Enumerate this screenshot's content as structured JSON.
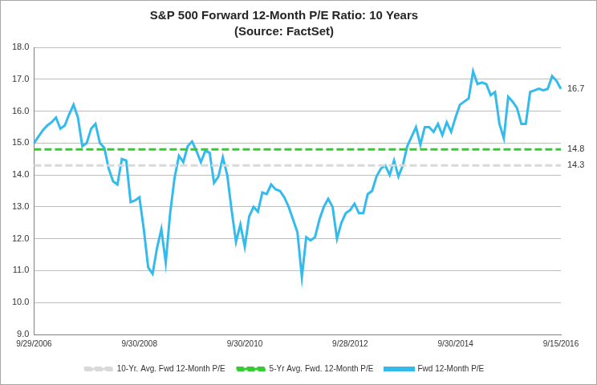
{
  "chart_data": {
    "type": "line",
    "title": "S&P 500 Forward 12-Month P/E Ratio: 10 Years",
    "subtitle": "(Source: FactSet)",
    "categories": [
      "9/29/2006",
      null,
      null,
      null,
      null,
      null,
      null,
      null,
      null,
      null,
      null,
      null,
      null,
      null,
      null,
      null,
      null,
      null,
      null,
      null,
      null,
      null,
      null,
      null,
      "9/30/2008",
      null,
      null,
      null,
      null,
      null,
      null,
      null,
      null,
      null,
      null,
      null,
      null,
      null,
      null,
      null,
      null,
      null,
      null,
      null,
      null,
      null,
      null,
      null,
      "9/30/2010",
      null,
      null,
      null,
      null,
      null,
      null,
      null,
      null,
      null,
      null,
      null,
      null,
      null,
      null,
      null,
      null,
      null,
      null,
      null,
      null,
      null,
      null,
      null,
      "9/28/2012",
      null,
      null,
      null,
      null,
      null,
      null,
      null,
      null,
      null,
      null,
      null,
      null,
      null,
      null,
      null,
      null,
      null,
      null,
      null,
      null,
      null,
      null,
      null,
      "9/30/2014",
      null,
      null,
      null,
      null,
      null,
      null,
      null,
      null,
      null,
      null,
      null,
      null,
      null,
      null,
      null,
      null,
      null,
      null,
      null,
      null,
      null,
      null,
      null,
      "9/15/2016"
    ],
    "series": [
      {
        "name": "Fwd 12-Month P/E",
        "color": "#33bbee",
        "line_style": "solid",
        "values": [
          15.0,
          15.2,
          15.4,
          15.55,
          15.65,
          15.8,
          15.45,
          15.55,
          15.9,
          16.2,
          15.8,
          14.9,
          15.0,
          15.45,
          15.6,
          15.0,
          14.85,
          14.2,
          13.8,
          13.7,
          14.5,
          14.45,
          13.15,
          13.2,
          13.3,
          12.3,
          11.1,
          10.9,
          11.7,
          12.3,
          11.25,
          12.8,
          13.9,
          14.6,
          14.4,
          14.9,
          15.05,
          14.75,
          14.4,
          14.75,
          14.7,
          13.75,
          13.95,
          14.55,
          14.0,
          12.9,
          11.9,
          12.45,
          11.75,
          12.7,
          13.0,
          12.85,
          13.45,
          13.4,
          13.7,
          13.55,
          13.5,
          13.3,
          13.0,
          12.6,
          12.2,
          10.8,
          12.05,
          11.95,
          12.05,
          12.6,
          13.0,
          13.25,
          13.0,
          12.0,
          12.5,
          12.8,
          12.9,
          13.1,
          12.8,
          12.8,
          13.4,
          13.5,
          13.95,
          14.2,
          14.3,
          14.0,
          14.45,
          13.95,
          14.3,
          14.9,
          15.2,
          15.5,
          14.95,
          15.5,
          15.5,
          15.35,
          15.6,
          15.25,
          15.65,
          15.35,
          15.8,
          16.2,
          16.3,
          16.4,
          17.25,
          16.85,
          16.9,
          16.85,
          16.5,
          16.6,
          15.6,
          15.15,
          16.45,
          16.3,
          16.1,
          15.6,
          15.6,
          16.6,
          16.65,
          16.7,
          16.65,
          16.7,
          17.1,
          16.95,
          16.7
        ]
      },
      {
        "name": "5-Yr Avg. Fwd. 12-Month P/E",
        "color": "#33cc33",
        "line_style": "dashed",
        "values": [
          14.8,
          14.8,
          14.8,
          14.8,
          14.8,
          14.8,
          14.8,
          14.8,
          14.8,
          14.8,
          14.8,
          14.8,
          14.8,
          14.8,
          14.8,
          14.8,
          14.8,
          14.8,
          14.8,
          14.8,
          14.8,
          14.8,
          14.8,
          14.8,
          14.8,
          14.8,
          14.8,
          14.8,
          14.8,
          14.8,
          14.8,
          14.8,
          14.8,
          14.8,
          14.8,
          14.8,
          14.8,
          14.8,
          14.8,
          14.8,
          14.8,
          14.8,
          14.8,
          14.8,
          14.8,
          14.8,
          14.8,
          14.8,
          14.8,
          14.8,
          14.8,
          14.8,
          14.8,
          14.8,
          14.8,
          14.8,
          14.8,
          14.8,
          14.8,
          14.8,
          14.8,
          14.8,
          14.8,
          14.8,
          14.8,
          14.8,
          14.8,
          14.8,
          14.8,
          14.8,
          14.8,
          14.8,
          14.8,
          14.8,
          14.8,
          14.8,
          14.8,
          14.8,
          14.8,
          14.8,
          14.8,
          14.8,
          14.8,
          14.8,
          14.8,
          14.8,
          14.8,
          14.8,
          14.8,
          14.8,
          14.8,
          14.8,
          14.8,
          14.8,
          14.8,
          14.8,
          14.8,
          14.8,
          14.8,
          14.8,
          14.8,
          14.8,
          14.8,
          14.8,
          14.8,
          14.8,
          14.8,
          14.8,
          14.8,
          14.8,
          14.8,
          14.8,
          14.8,
          14.8,
          14.8,
          14.8,
          14.8,
          14.8,
          14.8,
          14.8,
          14.8
        ]
      },
      {
        "name": "10-Yr. Avg. Fwd 12-Month P/E",
        "color": "#d9d9d9",
        "line_style": "dashed",
        "values": [
          14.3,
          14.3,
          14.3,
          14.3,
          14.3,
          14.3,
          14.3,
          14.3,
          14.3,
          14.3,
          14.3,
          14.3,
          14.3,
          14.3,
          14.3,
          14.3,
          14.3,
          14.3,
          14.3,
          14.3,
          14.3,
          14.3,
          14.3,
          14.3,
          14.3,
          14.3,
          14.3,
          14.3,
          14.3,
          14.3,
          14.3,
          14.3,
          14.3,
          14.3,
          14.3,
          14.3,
          14.3,
          14.3,
          14.3,
          14.3,
          14.3,
          14.3,
          14.3,
          14.3,
          14.3,
          14.3,
          14.3,
          14.3,
          14.3,
          14.3,
          14.3,
          14.3,
          14.3,
          14.3,
          14.3,
          14.3,
          14.3,
          14.3,
          14.3,
          14.3,
          14.3,
          14.3,
          14.3,
          14.3,
          14.3,
          14.3,
          14.3,
          14.3,
          14.3,
          14.3,
          14.3,
          14.3,
          14.3,
          14.3,
          14.3,
          14.3,
          14.3,
          14.3,
          14.3,
          14.3,
          14.3,
          14.3,
          14.3,
          14.3,
          14.3,
          14.3,
          14.3,
          14.3,
          14.3,
          14.3,
          14.3,
          14.3,
          14.3,
          14.3,
          14.3,
          14.3,
          14.3,
          14.3,
          14.3,
          14.3,
          14.3,
          14.3,
          14.3,
          14.3,
          14.3,
          14.3,
          14.3,
          14.3,
          14.3,
          14.3,
          14.3,
          14.3,
          14.3,
          14.3,
          14.3,
          14.3,
          14.3,
          14.3,
          14.3,
          14.3,
          14.3
        ]
      }
    ],
    "ylim": [
      9,
      18
    ],
    "yticks": [
      {
        "value": 9,
        "label": "9.0"
      },
      {
        "value": 10,
        "label": "10.0"
      },
      {
        "value": 11,
        "label": "11.0"
      },
      {
        "value": 12,
        "label": "12.0"
      },
      {
        "value": 13,
        "label": "13.0"
      },
      {
        "value": 14,
        "label": "14.0"
      },
      {
        "value": 15,
        "label": "15.0"
      },
      {
        "value": 16,
        "label": "16.0"
      },
      {
        "value": 17,
        "label": "17.0"
      },
      {
        "value": 18,
        "label": "18.0"
      }
    ],
    "annotations": [
      {
        "label": "16.7",
        "value": 16.7
      },
      {
        "label": "14.8",
        "value": 14.8
      },
      {
        "label": "14.3",
        "value": 14.3
      }
    ],
    "grid": "y",
    "legend": "bottom"
  }
}
